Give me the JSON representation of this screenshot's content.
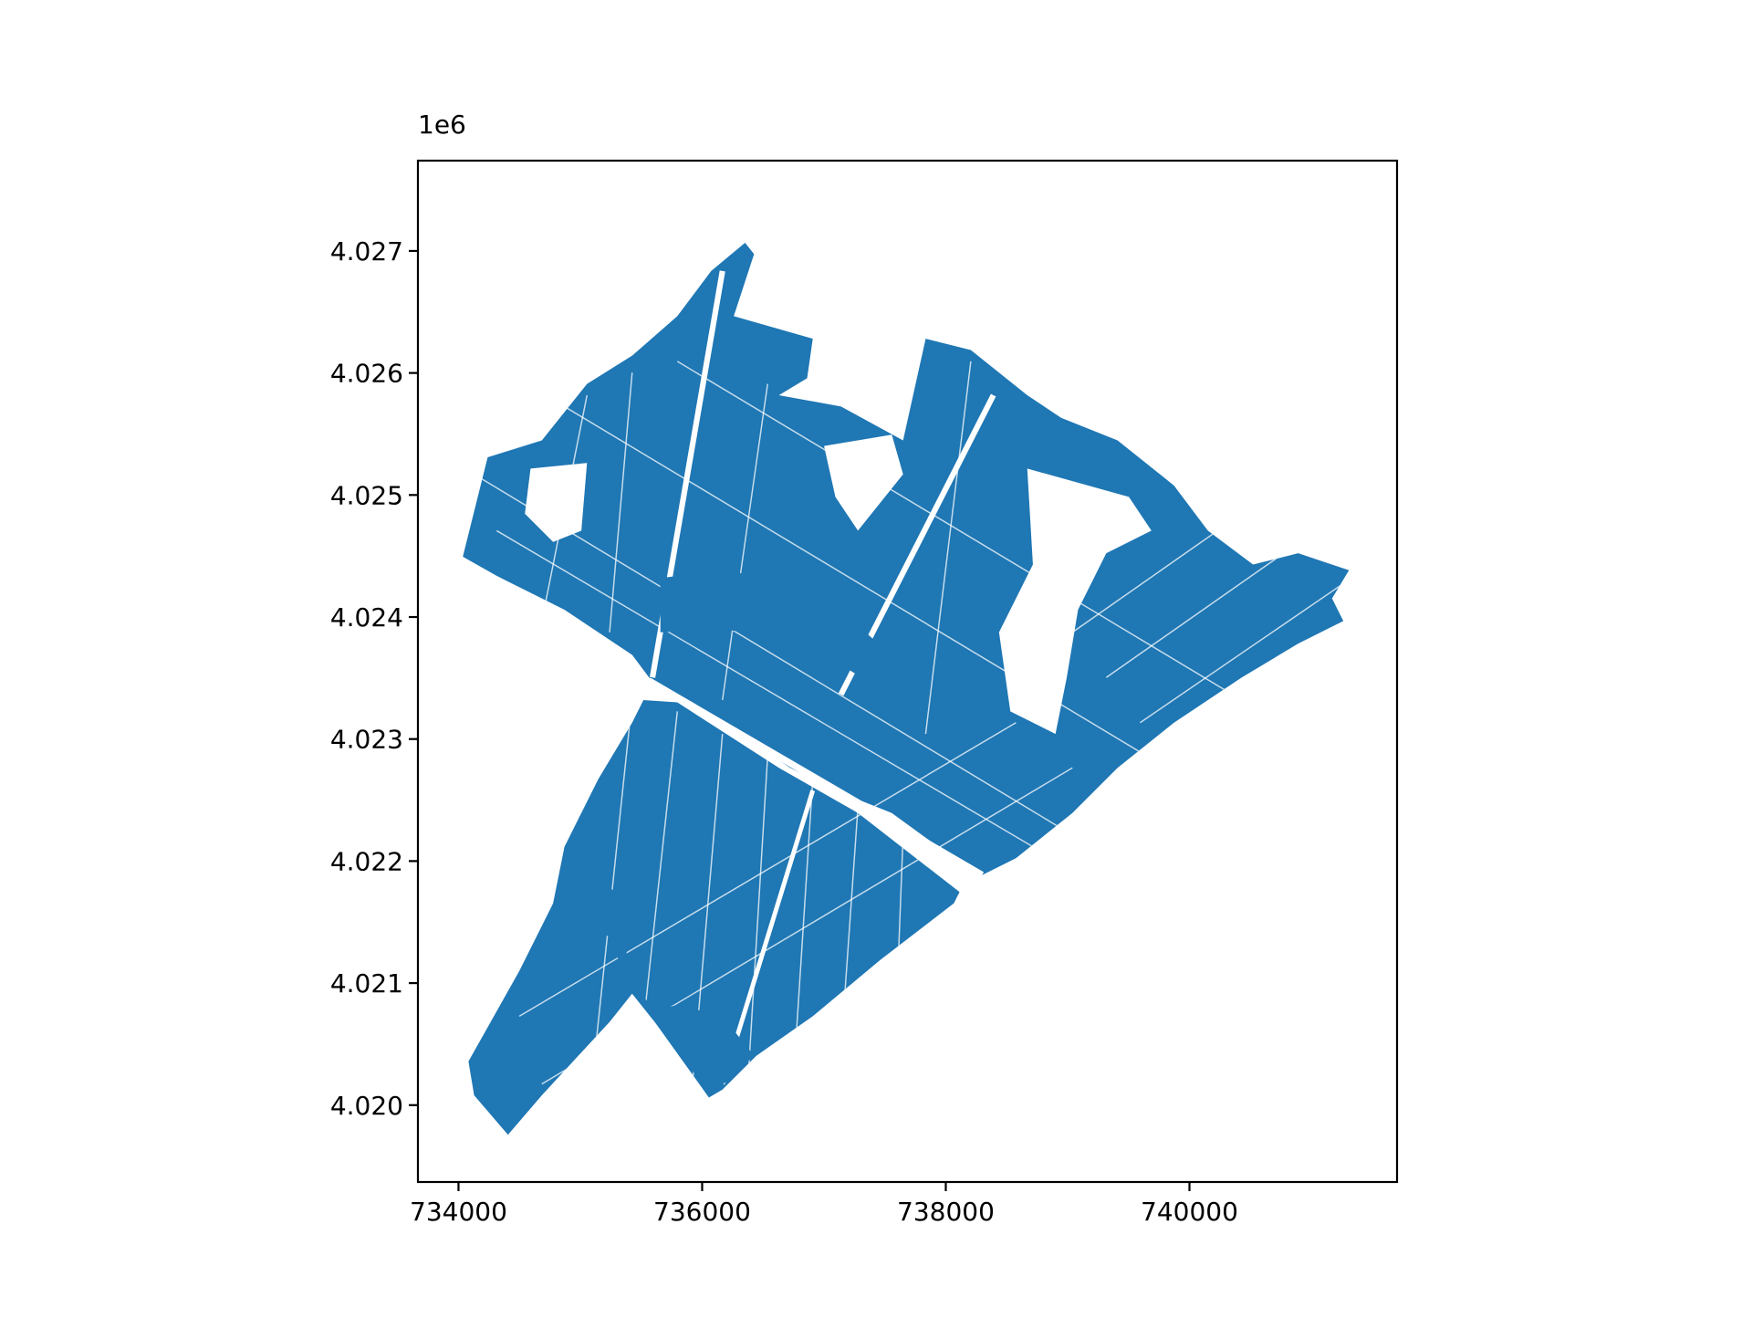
{
  "chart_data": {
    "type": "map",
    "offset_label": "1e6",
    "xlim": [
      733667,
      741704
    ],
    "ylim": [
      4.01937,
      4.02774
    ],
    "xticks": [
      734000,
      736000,
      738000,
      740000
    ],
    "yticks": [
      {
        "value": 4.02,
        "label": "4.020"
      },
      4.021,
      4.022,
      4.023,
      4.024,
      4.025,
      4.026,
      4.027
    ],
    "color": "#1f77b4"
  }
}
